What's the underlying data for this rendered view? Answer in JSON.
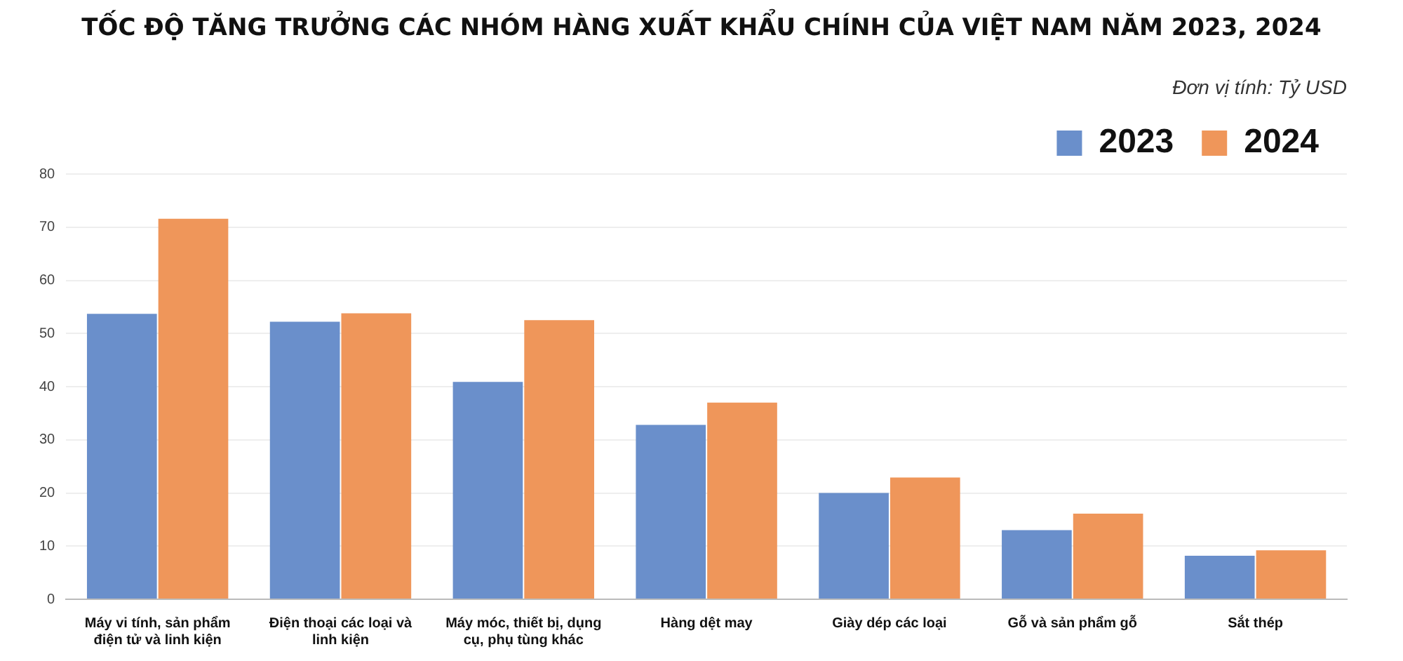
{
  "chart_data": {
    "type": "bar",
    "title": "TỐC ĐỘ TĂNG TRƯỞNG CÁC NHÓM HÀNG XUẤT KHẨU CHÍNH CỦA VIỆT NAM NĂM 2023, 2024",
    "annotations": [
      "Đơn vị tính: Tỷ USD"
    ],
    "categories": [
      "Máy vi tính, sản phẩm điện tử và linh kiện",
      "Điện thoại các loại và linh kiện",
      "Máy móc, thiết bị, dụng cụ, phụ tùng khác",
      "Hàng dệt may",
      "Giày dép các loại",
      "Gỗ và sản phẩm gỗ",
      "Sắt thép"
    ],
    "series": [
      {
        "name": "2023",
        "color": "#6a8fcb",
        "values": [
          53.7,
          52.2,
          40.9,
          32.8,
          20.0,
          13.0,
          8.2
        ]
      },
      {
        "name": "2024",
        "color": "#ef965a",
        "values": [
          71.6,
          53.8,
          52.5,
          37.0,
          22.9,
          16.1,
          9.2
        ]
      }
    ],
    "ylim": [
      0,
      80
    ],
    "yticks": [
      0,
      10,
      20,
      30,
      40,
      50,
      60,
      70,
      80
    ],
    "grid": "y",
    "legend": "top right"
  }
}
